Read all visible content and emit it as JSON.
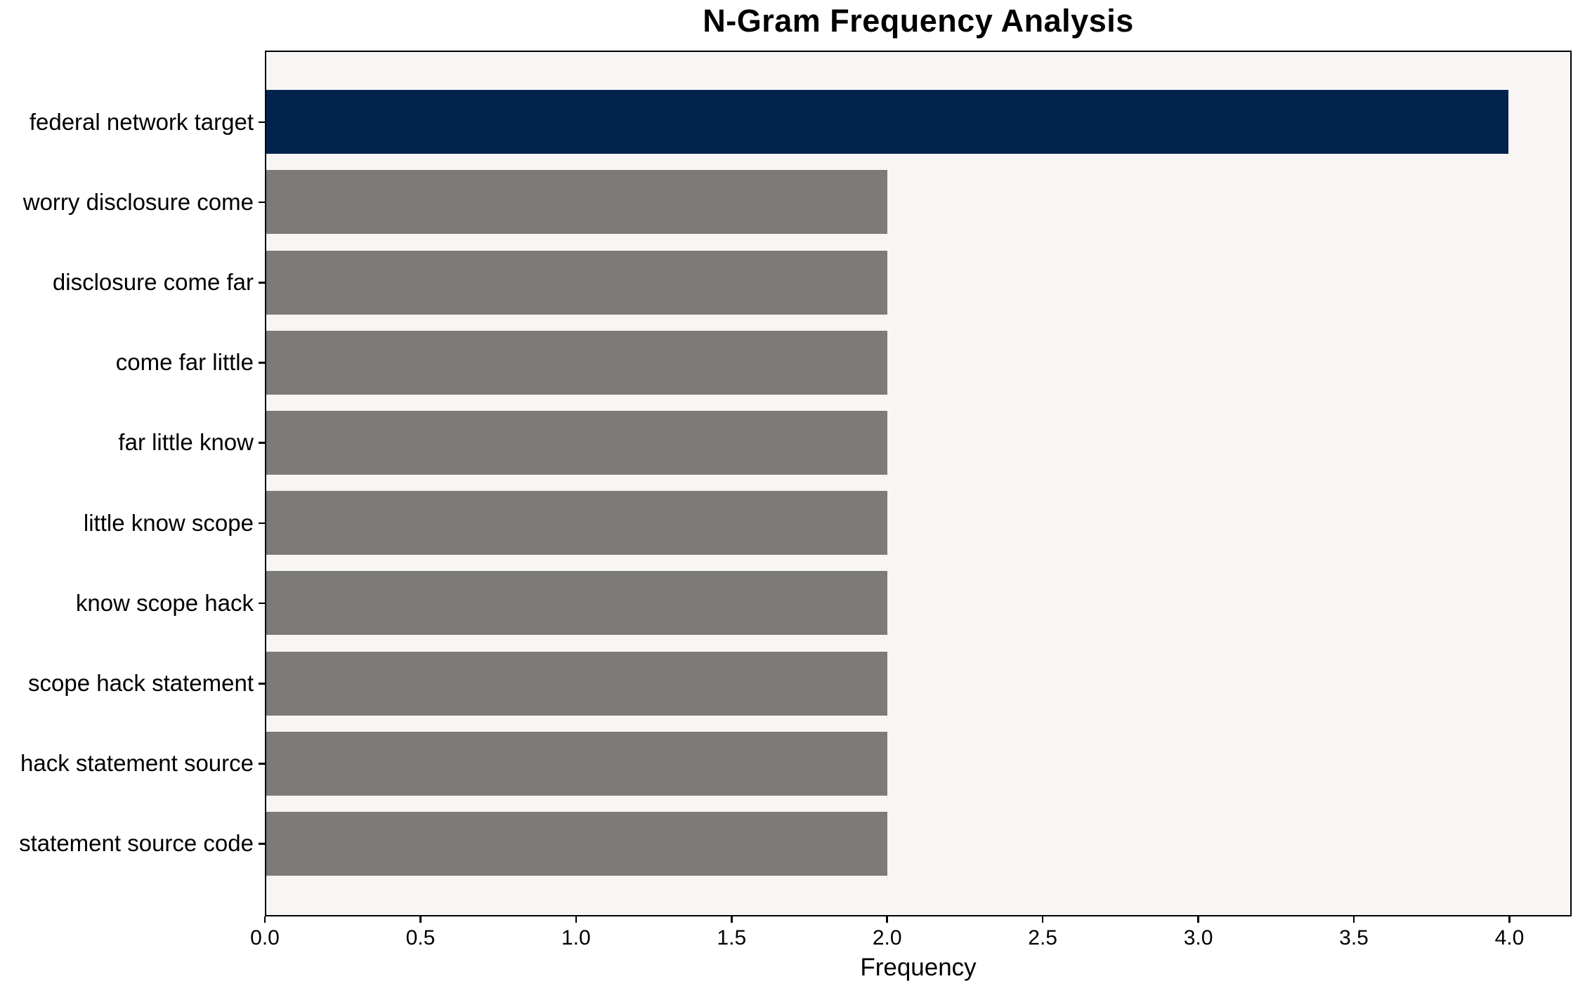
{
  "chart_data": {
    "type": "bar",
    "orientation": "horizontal",
    "title": "N-Gram Frequency Analysis",
    "xlabel": "Frequency",
    "ylabel": "",
    "categories": [
      "federal network target",
      "worry disclosure come",
      "disclosure come far",
      "come far little",
      "far little know",
      "little know scope",
      "know scope hack",
      "scope hack statement",
      "hack statement source",
      "statement source code"
    ],
    "values": [
      4,
      2,
      2,
      2,
      2,
      2,
      2,
      2,
      2,
      2
    ],
    "bar_colors": [
      "#01234e",
      "#7c7b78",
      "#7c7b78",
      "#7c7b78",
      "#7c7b78",
      "#7c7b78",
      "#7c7b78",
      "#7c7b78",
      "#7c7b78",
      "#7c7b78"
    ],
    "xlim": [
      0,
      4.2
    ],
    "xtick_values": [
      0,
      0.5,
      1.0,
      1.5,
      2.0,
      2.5,
      3.0,
      3.5,
      4.0
    ],
    "xtick_labels": [
      "0.0",
      "0.5",
      "1.0",
      "1.5",
      "2.0",
      "2.5",
      "3.0",
      "3.5",
      "4.0"
    ],
    "grid": false,
    "legend": "none",
    "colors": {
      "highlight_bar": "#01234e",
      "default_bar": "#7c7b78",
      "plot_background": "#f7f6f5",
      "figure_background": "#ffffff",
      "spine": "#000000",
      "text": "#000000"
    }
  }
}
